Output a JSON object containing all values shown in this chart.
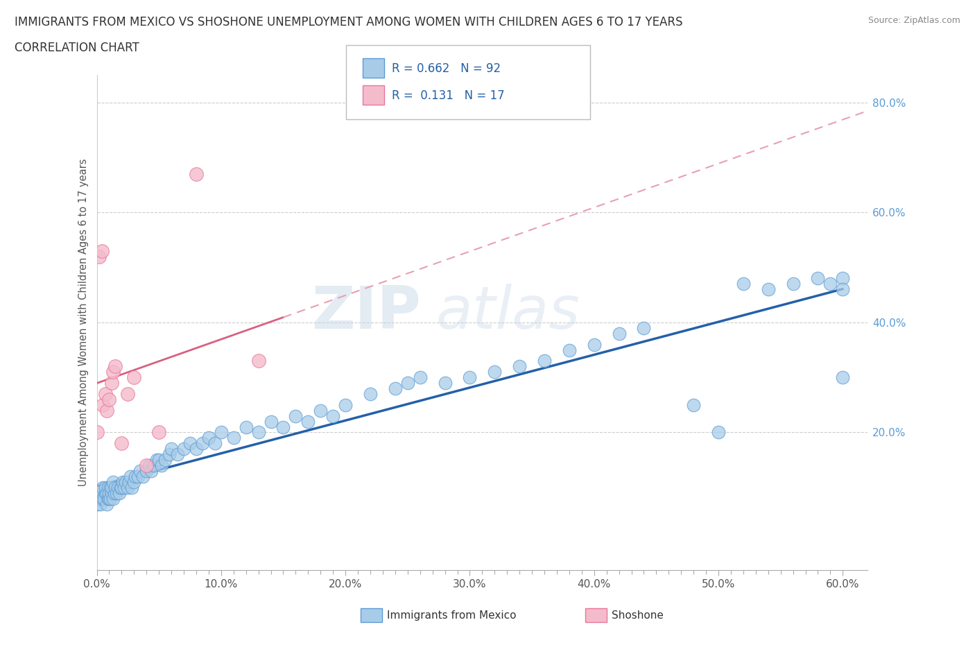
{
  "title_line1": "IMMIGRANTS FROM MEXICO VS SHOSHONE UNEMPLOYMENT AMONG WOMEN WITH CHILDREN AGES 6 TO 17 YEARS",
  "title_line2": "CORRELATION CHART",
  "source_text": "Source: ZipAtlas.com",
  "ylabel": "Unemployment Among Women with Children Ages 6 to 17 years",
  "xlim": [
    0.0,
    0.62
  ],
  "ylim": [
    -0.05,
    0.85
  ],
  "xtick_labels": [
    "0.0%",
    "",
    "",
    "",
    "",
    "",
    "",
    "",
    "",
    "",
    "10.0%",
    "",
    "",
    "",
    "",
    "",
    "",
    "",
    "",
    "",
    "20.0%",
    "",
    "",
    "",
    "",
    "",
    "",
    "",
    "",
    "",
    "30.0%",
    "",
    "",
    "",
    "",
    "",
    "",
    "",
    "",
    "",
    "40.0%",
    "",
    "",
    "",
    "",
    "",
    "",
    "",
    "",
    "",
    "50.0%",
    "",
    "",
    "",
    "",
    "",
    "",
    "",
    "",
    "",
    "60.0%"
  ],
  "xtick_vals": [
    0.0,
    0.01,
    0.02,
    0.03,
    0.04,
    0.05,
    0.06,
    0.07,
    0.08,
    0.09,
    0.1,
    0.11,
    0.12,
    0.13,
    0.14,
    0.15,
    0.16,
    0.17,
    0.18,
    0.19,
    0.2,
    0.21,
    0.22,
    0.23,
    0.24,
    0.25,
    0.26,
    0.27,
    0.28,
    0.29,
    0.3,
    0.31,
    0.32,
    0.33,
    0.34,
    0.35,
    0.36,
    0.37,
    0.38,
    0.39,
    0.4,
    0.41,
    0.42,
    0.43,
    0.44,
    0.45,
    0.46,
    0.47,
    0.48,
    0.49,
    0.5,
    0.51,
    0.52,
    0.53,
    0.54,
    0.55,
    0.56,
    0.57,
    0.58,
    0.59,
    0.6
  ],
  "ytick_labels_right": [
    "20.0%",
    "40.0%",
    "60.0%",
    "80.0%"
  ],
  "ytick_vals": [
    0.2,
    0.4,
    0.6,
    0.8
  ],
  "mexico_color": "#A8CCE8",
  "mexico_edge_color": "#5B9BD5",
  "shoshone_color": "#F4BBCC",
  "shoshone_edge_color": "#E87898",
  "trendline_mexico_color": "#2460A7",
  "trendline_shoshone_solid_color": "#D96080",
  "trendline_shoshone_dashed_color": "#E8A0B0",
  "legend_R_mexico": "0.662",
  "legend_N_mexico": "92",
  "legend_R_shoshone": "0.131",
  "legend_N_shoshone": "17",
  "watermark_zip": "ZIP",
  "watermark_atlas": "atlas",
  "mexico_x": [
    0.0,
    0.001,
    0.002,
    0.003,
    0.004,
    0.005,
    0.005,
    0.006,
    0.007,
    0.007,
    0.008,
    0.008,
    0.009,
    0.009,
    0.01,
    0.01,
    0.011,
    0.011,
    0.012,
    0.012,
    0.013,
    0.013,
    0.014,
    0.015,
    0.016,
    0.017,
    0.018,
    0.019,
    0.02,
    0.021,
    0.022,
    0.023,
    0.025,
    0.026,
    0.027,
    0.028,
    0.03,
    0.031,
    0.033,
    0.035,
    0.037,
    0.04,
    0.042,
    0.044,
    0.046,
    0.048,
    0.05,
    0.052,
    0.055,
    0.058,
    0.06,
    0.065,
    0.07,
    0.075,
    0.08,
    0.085,
    0.09,
    0.095,
    0.1,
    0.11,
    0.12,
    0.13,
    0.14,
    0.15,
    0.16,
    0.17,
    0.18,
    0.19,
    0.2,
    0.22,
    0.24,
    0.25,
    0.26,
    0.28,
    0.3,
    0.32,
    0.34,
    0.36,
    0.38,
    0.4,
    0.42,
    0.44,
    0.48,
    0.5,
    0.52,
    0.54,
    0.56,
    0.58,
    0.59,
    0.6,
    0.6,
    0.6
  ],
  "mexico_y": [
    0.07,
    0.08,
    0.08,
    0.07,
    0.09,
    0.08,
    0.1,
    0.08,
    0.09,
    0.1,
    0.07,
    0.09,
    0.08,
    0.1,
    0.08,
    0.09,
    0.08,
    0.1,
    0.09,
    0.1,
    0.08,
    0.11,
    0.09,
    0.1,
    0.09,
    0.1,
    0.09,
    0.1,
    0.1,
    0.11,
    0.1,
    0.11,
    0.1,
    0.11,
    0.12,
    0.1,
    0.11,
    0.12,
    0.12,
    0.13,
    0.12,
    0.13,
    0.14,
    0.13,
    0.14,
    0.15,
    0.15,
    0.14,
    0.15,
    0.16,
    0.17,
    0.16,
    0.17,
    0.18,
    0.17,
    0.18,
    0.19,
    0.18,
    0.2,
    0.19,
    0.21,
    0.2,
    0.22,
    0.21,
    0.23,
    0.22,
    0.24,
    0.23,
    0.25,
    0.27,
    0.28,
    0.29,
    0.3,
    0.29,
    0.3,
    0.31,
    0.32,
    0.33,
    0.35,
    0.36,
    0.38,
    0.39,
    0.25,
    0.2,
    0.47,
    0.46,
    0.47,
    0.48,
    0.47,
    0.48,
    0.46,
    0.3
  ],
  "shoshone_x": [
    0.0,
    0.002,
    0.004,
    0.005,
    0.007,
    0.008,
    0.01,
    0.012,
    0.013,
    0.015,
    0.02,
    0.025,
    0.03,
    0.04,
    0.05,
    0.08,
    0.13
  ],
  "shoshone_y": [
    0.2,
    0.52,
    0.53,
    0.25,
    0.27,
    0.24,
    0.26,
    0.29,
    0.31,
    0.32,
    0.18,
    0.27,
    0.3,
    0.14,
    0.2,
    0.67,
    0.33
  ]
}
